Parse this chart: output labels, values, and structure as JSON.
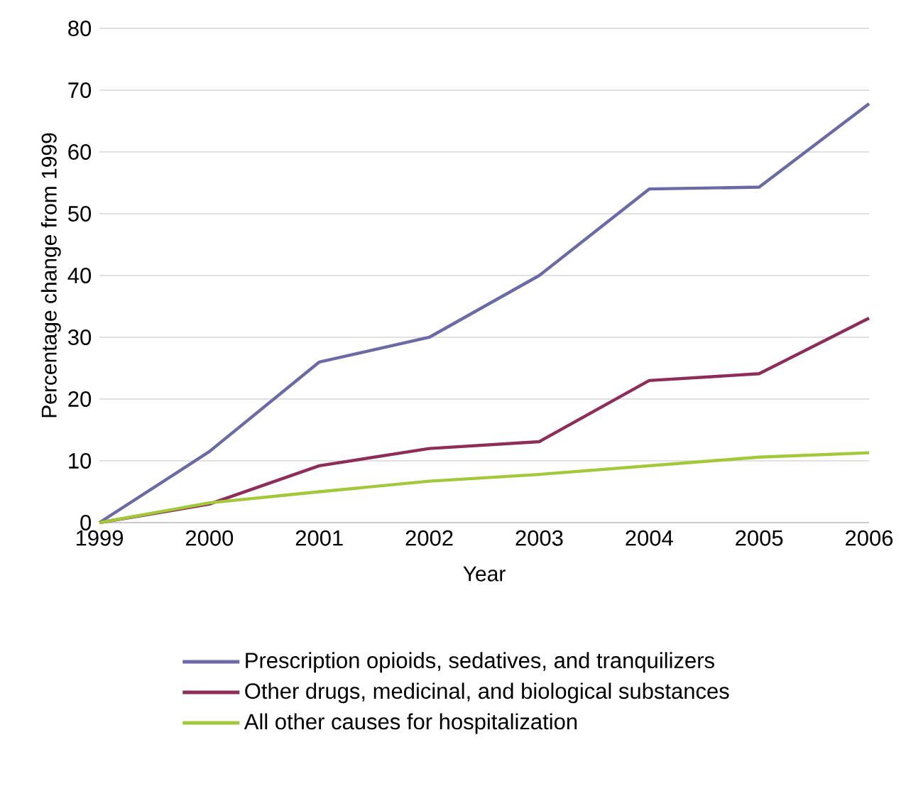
{
  "chart_data": {
    "type": "line",
    "xlabel": "Year",
    "ylabel": "Percentage change from 1999",
    "x": [
      1999,
      2000,
      2001,
      2002,
      2003,
      2004,
      2005,
      2006
    ],
    "series": [
      {
        "name": "Prescription opioids, sedatives, and tranquilizers",
        "color": "#6a6aa6",
        "values": [
          0,
          11.5,
          26,
          30,
          40,
          54,
          54.3,
          67.8
        ]
      },
      {
        "name": "Other drugs, medicinal, and biological substances",
        "color": "#8e2c5a",
        "values": [
          0,
          3,
          9.2,
          12,
          13.1,
          23,
          24.1,
          33.1
        ]
      },
      {
        "name": "All other causes for hospitalization",
        "color": "#a3c93a",
        "values": [
          0,
          3.2,
          5,
          6.7,
          7.8,
          9.2,
          10.6,
          11.3
        ]
      }
    ],
    "xlim": [
      1999,
      2006
    ],
    "xticks": [
      1999,
      2000,
      2001,
      2002,
      2003,
      2004,
      2005,
      2006
    ],
    "ylim": [
      0,
      80
    ],
    "yticks": [
      0,
      10,
      20,
      30,
      40,
      50,
      60,
      70,
      80
    ],
    "grid": "y",
    "legend": "bottom",
    "marker": "none",
    "line_style": "solid"
  }
}
